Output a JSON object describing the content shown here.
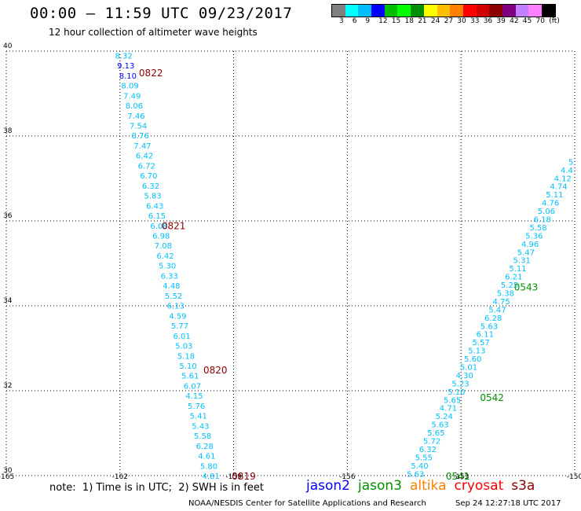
{
  "header": {
    "title": "00:00 — 11:59 UTC 09/23/2017",
    "subtitle": "12 hour collection of altimeter wave heights"
  },
  "legend": {
    "colors": [
      "#808080",
      "#00ffff",
      "#00bfff",
      "#0000ff",
      "#00bf00",
      "#00ff00",
      "#008f00",
      "#ffff00",
      "#ffbf00",
      "#ff8000",
      "#ff0000",
      "#d00000",
      "#8b0000",
      "#800080",
      "#c080ff",
      "#ff80ff",
      "#000000"
    ],
    "labels": [
      "3",
      "6",
      "9",
      "12",
      "15",
      "18",
      "21",
      "24",
      "27",
      "30",
      "33",
      "36",
      "39",
      "42",
      "45",
      "70",
      "(ft)"
    ]
  },
  "footer": {
    "note": "note:  1) Time is in UTC;  2) SWH is in feet",
    "satellites": [
      {
        "name": "jason2",
        "color": "#0000ff"
      },
      {
        "name": "jason3",
        "color": "#008f00"
      },
      {
        "name": "altika",
        "color": "#ff8000"
      },
      {
        "name": "cryosat",
        "color": "#ff0000"
      },
      {
        "name": "s3a",
        "color": "#8b0000"
      }
    ],
    "credit": "NOAA/NESDIS Center for Satellite Applications and Research",
    "timestamp": "Sep 24 12:27:18 UTC 2017"
  },
  "chart_data": {
    "type": "scatter",
    "x_ticks": [
      "-165",
      "-162",
      "-159",
      "-156",
      "-153",
      "-150"
    ],
    "y_ticks": [
      "30",
      "32",
      "34",
      "36",
      "38",
      "40"
    ],
    "xlim": [
      -165,
      -150
    ],
    "ylim": [
      30,
      40
    ],
    "grid": true,
    "tracks": [
      {
        "satellite": "s3a",
        "start": [
          -161.9,
          39.9
        ],
        "end": [
          -159.6,
          30.0
        ],
        "value_color": "#00bfff",
        "values": [
          "8.32",
          "9.13",
          "8.10",
          "8.09",
          "7.49",
          "8.06",
          "7.46",
          "7.54",
          "8.76",
          "7.47",
          "6.42",
          "6.72",
          "6.70",
          "6.32",
          "5.83",
          "6.43",
          "6.15",
          "6.08",
          "6.98",
          "7.08",
          "6.42",
          "5.30",
          "6.33",
          "4.48",
          "5.52",
          "6.13",
          "4.59",
          "5.77",
          "6.01",
          "5.03",
          "5.18",
          "5.10",
          "5.61",
          "6.07",
          "4.15",
          "5.76",
          "5.41",
          "5.43",
          "5.58",
          "6.28",
          "4.61",
          "5.80",
          "4.81"
        ],
        "value_colors": {
          "1": "#0000ff",
          "2": "#0000ff"
        },
        "time_labels": [
          {
            "text": "0822",
            "x": -161.5,
            "y": 39.5
          },
          {
            "text": "0821",
            "x": -160.9,
            "y": 35.9
          },
          {
            "text": "0820",
            "x": -159.8,
            "y": 32.5
          },
          {
            "text": "0819",
            "x": -159.05,
            "y": 30.0
          }
        ],
        "label_color": "#8b0000"
      },
      {
        "satellite": "jason3",
        "start": [
          -154.2,
          30.05
        ],
        "end": [
          -150.1,
          37.4
        ],
        "value_color": "#00bfff",
        "values": [
          "5.63",
          "5.40",
          "5.55",
          "6.32",
          "5.72",
          "5.65",
          "5.63",
          "5.24",
          "4.71",
          "5.65",
          "5.10",
          "5.23",
          "4.30",
          "5.01",
          "5.60",
          "5.13",
          "5.57",
          "6.11",
          "5.63",
          "6.28",
          "5.47",
          "4.75",
          "5.38",
          "5.25",
          "6.21",
          "5.11",
          "5.31",
          "5.47",
          "4.96",
          "5.36",
          "5.58",
          "6.18",
          "5.06",
          "4.76",
          "5.11",
          "4.74",
          "4.12",
          "4.4",
          "5"
        ],
        "value_colors": {},
        "time_labels": [
          {
            "text": "0543",
            "x": -151.6,
            "y": 34.45
          },
          {
            "text": "0542",
            "x": -152.5,
            "y": 31.85
          },
          {
            "text": "0541",
            "x": -153.4,
            "y": 30.0
          }
        ],
        "label_color": "#008f00"
      }
    ]
  }
}
